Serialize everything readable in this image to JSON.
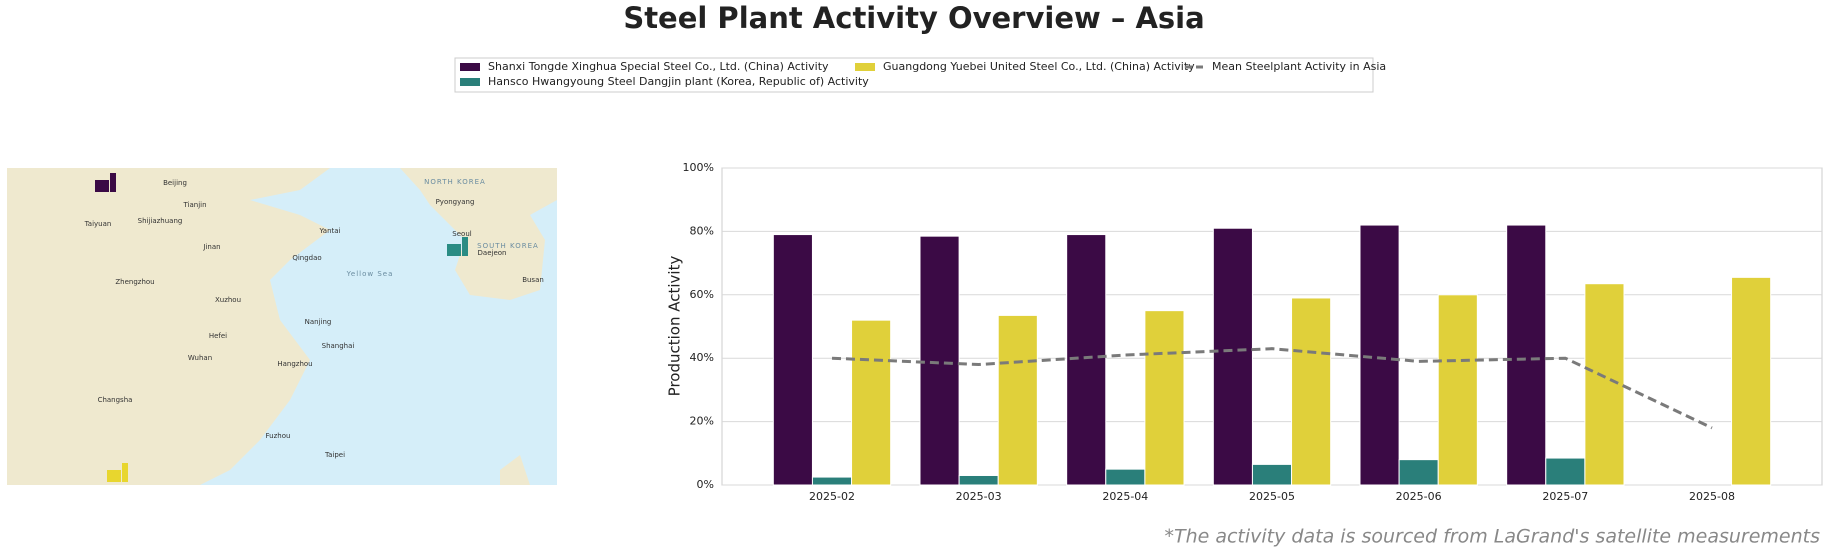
{
  "chart_data": {
    "type": "bar",
    "title": "Steel Plant Activity Overview – Asia",
    "ylabel": "Production Activity",
    "footnote": "*The activity data is sourced from LaGrand's satellite measurements",
    "categories": [
      "2025-02",
      "2025-03",
      "2025-04",
      "2025-05",
      "2025-06",
      "2025-07",
      "2025-08"
    ],
    "series": [
      {
        "name": "Shanxi Tongde Xinghua Special Steel Co., Ltd. (China) Activity",
        "color": "#3b0a45",
        "values": [
          79,
          78.5,
          79,
          81,
          82,
          82,
          null
        ]
      },
      {
        "name": "Hansco Hwangyoung Steel Dangjin plant (Korea, Republic of) Activity",
        "color": "#2a7f7a",
        "values": [
          2.5,
          3,
          5,
          6.5,
          8,
          8.5,
          null
        ]
      },
      {
        "name": "Guangdong Yuebei United Steel Co., Ltd. (China) Activity",
        "color": "#e0d03a",
        "values": [
          52,
          53.5,
          55,
          59,
          60,
          63.5,
          65.5
        ]
      }
    ],
    "mean_line": {
      "name": "Mean Steelplant Activity in Asia",
      "color": "#7a7a7a",
      "values": [
        40,
        38,
        41,
        43,
        39,
        40,
        18
      ]
    },
    "ylim": [
      0,
      100
    ],
    "yticks": [
      {
        "value": 0,
        "label": "0%"
      },
      {
        "value": 20,
        "label": "20%"
      },
      {
        "value": 40,
        "label": "40%"
      },
      {
        "value": 60,
        "label": "60%"
      },
      {
        "value": 80,
        "label": "80%"
      },
      {
        "value": 100,
        "label": "100%"
      }
    ],
    "grid": true,
    "map_labels": [
      "Beijing",
      "Tianjin",
      "Taiyuan",
      "Shijiazhuang",
      "Jinan",
      "Qingdao",
      "Yantai",
      "Zhengzhou",
      "Xuzhou",
      "Hefei",
      "Nanjing",
      "Shanghai",
      "Hangzhou",
      "Wuhan",
      "Changsha",
      "Fuzhou",
      "Taipei",
      "Pyongyang",
      "Seoul",
      "Daejeon",
      "Busan",
      "Yellow Sea",
      "NORTH KOREA",
      "SOUTH KOREA"
    ]
  }
}
